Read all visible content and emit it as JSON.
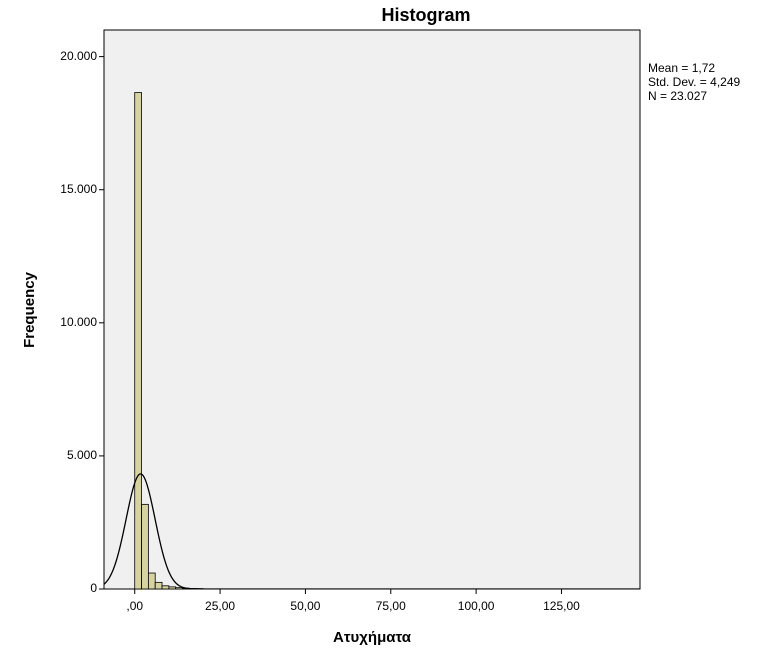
{
  "chart_data": {
    "type": "histogram",
    "title": "Histogram",
    "x_label": "Ατυχήματα",
    "y_label": "Frequency",
    "bins": [
      0,
      2,
      4,
      6,
      8,
      10,
      12,
      14,
      16,
      18,
      20
    ],
    "values": [
      18650,
      3180,
      600,
      250,
      120,
      80,
      50,
      30,
      20,
      15
    ],
    "color": "#d6d3a0",
    "xlim": [
      -9,
      148
    ],
    "xticks": [
      {
        "value": 0,
        "label": ",00"
      },
      {
        "value": 25,
        "label": "25,00"
      },
      {
        "value": 50,
        "label": "50,00"
      },
      {
        "value": 75,
        "label": "75,00"
      },
      {
        "value": 100,
        "label": "100,00"
      },
      {
        "value": 125,
        "label": "125,00"
      }
    ],
    "ylim": [
      0,
      21000
    ],
    "yticks": [
      0,
      {
        "value": 5000,
        "label": "5.000"
      },
      {
        "value": 10000,
        "label": "10.000"
      },
      {
        "value": 15000,
        "label": "15.000"
      },
      {
        "value": 20000,
        "label": "20.000"
      }
    ],
    "stats": [
      {
        "value": 1.72,
        "label": "Mean = 1,72"
      },
      {
        "value": 4.249,
        "label": "Std. Dev. = 4,249"
      },
      {
        "value": 23027,
        "label": "N = 23.027"
      }
    ]
  }
}
